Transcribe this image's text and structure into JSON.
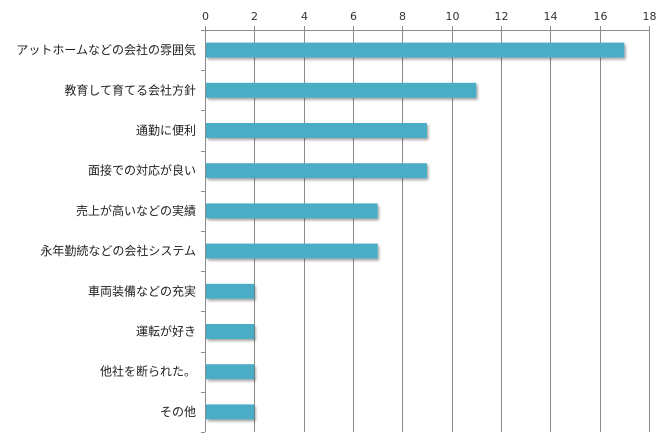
{
  "chart_data": {
    "type": "bar",
    "orientation": "horizontal",
    "categories": [
      "アットホームなどの会社の雰囲気",
      "教育して育てる会社方針",
      "通勤に便利",
      "面接での対応が良い",
      "売上が高いなどの実績",
      "永年勤続などの会社システム",
      "車両装備などの充実",
      "運転が好き",
      "他社を断られた。",
      "その他"
    ],
    "values": [
      17,
      11,
      9,
      9,
      7,
      7,
      2,
      2,
      2,
      2
    ],
    "xlim": [
      0,
      18
    ],
    "xticks": [
      0,
      2,
      4,
      6,
      8,
      10,
      12,
      14,
      16,
      18
    ],
    "xaxis_position": "top",
    "grid": true,
    "bar_color": "#4bacc6",
    "title": "",
    "xlabel": "",
    "ylabel": ""
  }
}
